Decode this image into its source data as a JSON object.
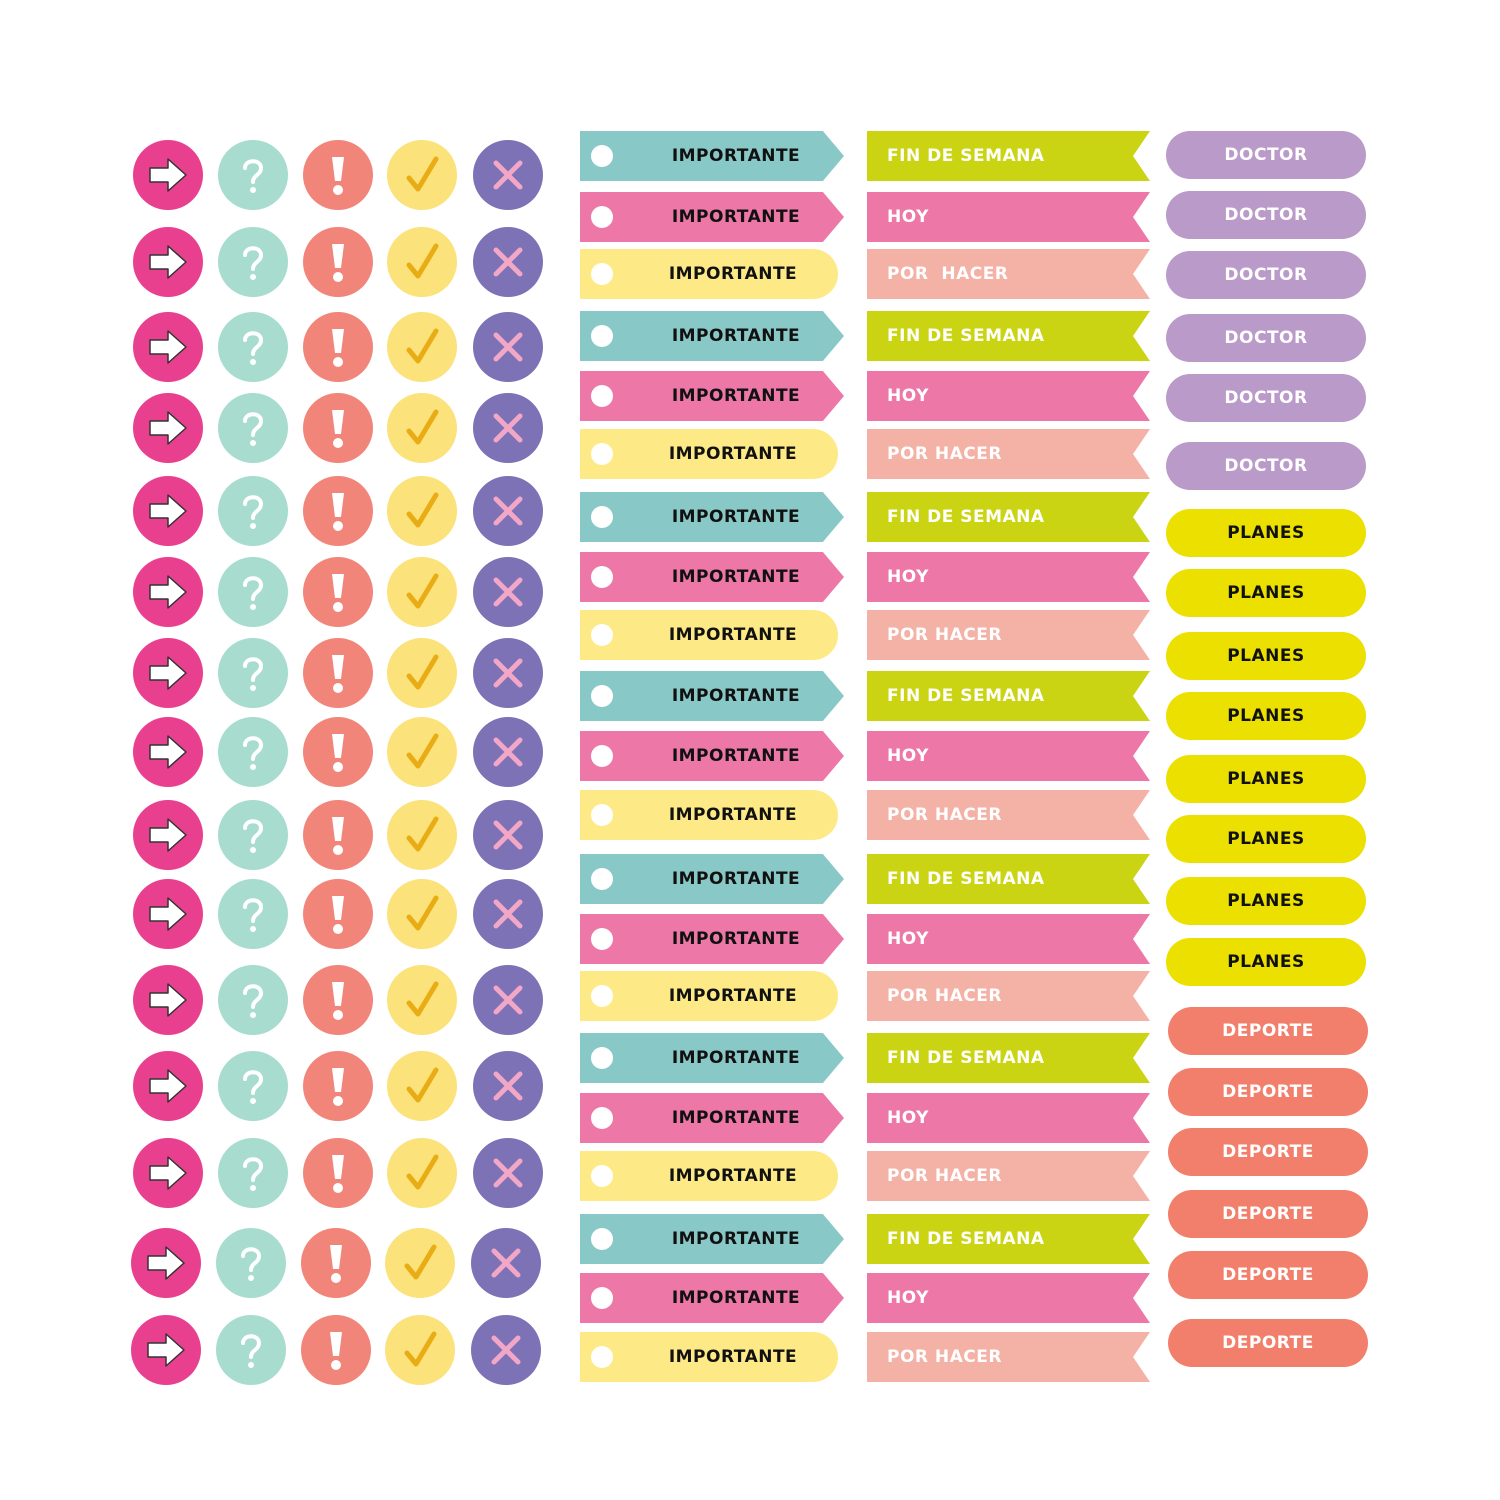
{
  "colors": {
    "magenta": "#e8408e",
    "mint": "#a8dccf",
    "coral": "#f2857a",
    "yellow": "#fbe27a",
    "purple": "#7e72b6",
    "teal": "#88c9c7",
    "pink": "#ed77a7",
    "pale_yellow": "#fdea86",
    "lime": "#cbd413",
    "salmon": "#f4b1a6",
    "lavender": "#b99ac9",
    "bright_yellow": "#ebe000",
    "deporte": "#f27f6b"
  },
  "icon_columns": [
    {
      "icon": "arrow-right-icon",
      "bg": "#e8408e",
      "fg": "#ffffff"
    },
    {
      "icon": "question-icon",
      "bg": "#a8dccf",
      "fg": "#ffffff"
    },
    {
      "icon": "exclamation-icon",
      "bg": "#f2857a",
      "fg": "#ffffff"
    },
    {
      "icon": "check-icon",
      "bg": "#fbe27a",
      "fg": "#e9ac15"
    },
    {
      "icon": "x-icon",
      "bg": "#7e72b6",
      "fg": "#f2a7c7"
    }
  ],
  "icon_rows": 15,
  "importante": {
    "label": "IMPORTANTE",
    "pattern": [
      {
        "style": "arrow",
        "bg": "#88c9c7"
      },
      {
        "style": "arrow",
        "bg": "#ed77a7"
      },
      {
        "style": "round",
        "bg": "#fdea86"
      }
    ],
    "groups": 7
  },
  "flags": {
    "pattern": [
      {
        "label": "FIN DE SEMANA",
        "bg": "#cbd413"
      },
      {
        "label": "HOY",
        "bg": "#ed77a7"
      },
      {
        "label": "POR HACER",
        "bg": "#f4b1a6"
      }
    ],
    "first_por_hacer_label": "POR  HACER",
    "groups": 7
  },
  "pills": [
    {
      "label": "DOCTOR",
      "bg": "#b99ac9",
      "fg": "#ffffff"
    },
    {
      "label": "DOCTOR",
      "bg": "#b99ac9",
      "fg": "#ffffff"
    },
    {
      "label": "DOCTOR",
      "bg": "#b99ac9",
      "fg": "#ffffff"
    },
    {
      "label": "DOCTOR",
      "bg": "#b99ac9",
      "fg": "#ffffff"
    },
    {
      "label": "DOCTOR",
      "bg": "#b99ac9",
      "fg": "#ffffff"
    },
    {
      "label": "DOCTOR",
      "bg": "#b99ac9",
      "fg": "#ffffff"
    },
    {
      "label": "PLANES",
      "bg": "#ebe000",
      "fg": "#111111"
    },
    {
      "label": "PLANES",
      "bg": "#ebe000",
      "fg": "#111111"
    },
    {
      "label": "PLANES",
      "bg": "#ebe000",
      "fg": "#111111"
    },
    {
      "label": "PLANES",
      "bg": "#ebe000",
      "fg": "#111111"
    },
    {
      "label": "PLANES",
      "bg": "#ebe000",
      "fg": "#111111"
    },
    {
      "label": "PLANES",
      "bg": "#ebe000",
      "fg": "#111111"
    },
    {
      "label": "PLANES",
      "bg": "#ebe000",
      "fg": "#111111"
    },
    {
      "label": "PLANES",
      "bg": "#ebe000",
      "fg": "#111111"
    },
    {
      "label": "DEPORTE",
      "bg": "#f27f6b",
      "fg": "#ffffff"
    },
    {
      "label": "DEPORTE",
      "bg": "#f27f6b",
      "fg": "#ffffff"
    },
    {
      "label": "DEPORTE",
      "bg": "#f27f6b",
      "fg": "#ffffff"
    },
    {
      "label": "DEPORTE",
      "bg": "#f27f6b",
      "fg": "#ffffff"
    },
    {
      "label": "DEPORTE",
      "bg": "#f27f6b",
      "fg": "#ffffff"
    },
    {
      "label": "DEPORTE",
      "bg": "#f27f6b",
      "fg": "#ffffff"
    }
  ]
}
